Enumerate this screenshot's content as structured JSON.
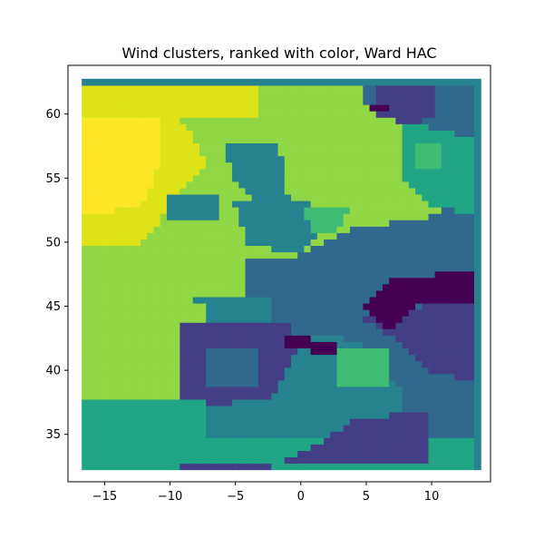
{
  "chart_data": {
    "type": "heatmap",
    "title": "Wind clusters, ranked with color, Ward HAC",
    "xlabel": "",
    "ylabel": "",
    "xlim": [
      -17.8,
      14.5
    ],
    "ylim": [
      31.3,
      63.8
    ],
    "x_ticks": [
      -15,
      -10,
      -5,
      0,
      5,
      10
    ],
    "y_ticks": [
      35,
      40,
      45,
      50,
      55,
      60
    ],
    "x_tick_labels": [
      "−15",
      "−10",
      "−5",
      "0",
      "5",
      "10"
    ],
    "y_tick_labels": [
      "35",
      "40",
      "45",
      "50",
      "55",
      "60"
    ],
    "colormap": "viridis",
    "grid": false,
    "cell_size_deg": 0.5,
    "x_extent": [
      -16.5,
      13.5
    ],
    "y_extent": [
      32.5,
      62.5
    ],
    "cluster_colors": {
      "1": "#440154",
      "2": "#433e85",
      "3": "#31688e",
      "4": "#26828e",
      "5": "#21a585",
      "6": "#3fbc73",
      "7": "#8fd744",
      "8": "#dde318",
      "9": "#fde725"
    },
    "default_cluster": 4,
    "regions": [
      {
        "cluster": 7,
        "polygon": [
          [
            -16.5,
            62.5
          ],
          [
            13.5,
            62.5
          ],
          [
            13.5,
            32.5
          ],
          [
            -16.5,
            32.5
          ]
        ]
      },
      {
        "cluster": 4,
        "polygon": [
          [
            -9,
            46
          ],
          [
            0,
            46
          ],
          [
            3,
            48
          ],
          [
            6,
            50
          ],
          [
            13.5,
            52
          ],
          [
            13.5,
            35
          ],
          [
            -7,
            35
          ],
          [
            -7,
            45
          ]
        ]
      },
      {
        "cluster": 8,
        "polygon": [
          [
            -16.5,
            62.5
          ],
          [
            -3,
            62.5
          ],
          [
            -3,
            60
          ],
          [
            -9,
            59.5
          ],
          [
            -7,
            56
          ],
          [
            -9,
            54
          ],
          [
            -12,
            50
          ],
          [
            -16.5,
            50
          ]
        ]
      },
      {
        "cluster": 9,
        "polygon": [
          [
            -16.5,
            60
          ],
          [
            -11,
            60
          ],
          [
            -10.5,
            57
          ],
          [
            -12,
            53
          ],
          [
            -16.5,
            52
          ]
        ]
      },
      {
        "cluster": 4,
        "polygon": [
          [
            -6,
            58
          ],
          [
            -2,
            58
          ],
          [
            -1,
            56
          ],
          [
            -1,
            54
          ],
          [
            -3,
            53
          ],
          [
            -5,
            55
          ]
        ]
      },
      {
        "cluster": 4,
        "polygon": [
          [
            -10,
            54
          ],
          [
            -6,
            54
          ],
          [
            -6,
            52
          ],
          [
            -10,
            51.5
          ]
        ]
      },
      {
        "cluster": 4,
        "polygon": [
          [
            -5,
            53
          ],
          [
            -2,
            54
          ],
          [
            1,
            53
          ],
          [
            2,
            51
          ],
          [
            0,
            49
          ],
          [
            -4,
            50
          ]
        ]
      },
      {
        "cluster": 6,
        "polygon": [
          [
            0,
            53
          ],
          [
            2,
            52.5
          ],
          [
            4,
            53
          ],
          [
            3,
            51
          ],
          [
            1,
            51
          ]
        ]
      },
      {
        "cluster": 3,
        "polygon": [
          [
            -4,
            49
          ],
          [
            0,
            49
          ],
          [
            4,
            51
          ],
          [
            10,
            52
          ],
          [
            13.5,
            54
          ],
          [
            13.5,
            33
          ],
          [
            8,
            33
          ],
          [
            8,
            38
          ],
          [
            5,
            42
          ],
          [
            2,
            43
          ],
          [
            -2,
            43
          ],
          [
            -2,
            46
          ],
          [
            -4,
            46
          ]
        ]
      },
      {
        "cluster": 5,
        "polygon": [
          [
            8,
            60
          ],
          [
            13.5,
            60
          ],
          [
            13.5,
            52
          ],
          [
            10,
            53
          ],
          [
            8,
            55
          ]
        ]
      },
      {
        "cluster": 6,
        "polygon": [
          [
            9,
            58
          ],
          [
            11,
            58
          ],
          [
            11,
            56
          ],
          [
            9,
            56
          ]
        ]
      },
      {
        "cluster": 3,
        "polygon": [
          [
            5,
            62.5
          ],
          [
            13.5,
            62.5
          ],
          [
            13.5,
            58
          ],
          [
            10,
            59
          ],
          [
            7,
            60
          ],
          [
            5,
            61
          ]
        ]
      },
      {
        "cluster": 2,
        "polygon": [
          [
            6,
            62.5
          ],
          [
            10.5,
            62.5
          ],
          [
            10.5,
            60
          ],
          [
            8.5,
            59
          ],
          [
            6,
            60
          ]
        ]
      },
      {
        "cluster": 1,
        "polygon": [
          [
            5.5,
            61
          ],
          [
            7,
            61
          ],
          [
            7,
            60.5
          ],
          [
            5.5,
            60.5
          ]
        ]
      },
      {
        "cluster": 2,
        "polygon": [
          [
            -9,
            44
          ],
          [
            -1,
            44
          ],
          [
            0,
            42
          ],
          [
            -1,
            40
          ],
          [
            -2,
            38
          ],
          [
            -5,
            37.5
          ],
          [
            -9,
            37.5
          ]
        ]
      },
      {
        "cluster": 3,
        "polygon": [
          [
            -7,
            42
          ],
          [
            -3,
            42
          ],
          [
            -3,
            39
          ],
          [
            -7,
            39
          ]
        ]
      },
      {
        "cluster": 1,
        "polygon": [
          [
            -1,
            43
          ],
          [
            3,
            42
          ],
          [
            3,
            41
          ],
          [
            -1,
            42
          ]
        ]
      },
      {
        "cluster": 6,
        "polygon": [
          [
            3,
            42
          ],
          [
            7,
            42
          ],
          [
            7,
            39
          ],
          [
            3,
            39
          ]
        ]
      },
      {
        "cluster": 2,
        "polygon": [
          [
            5,
            44
          ],
          [
            13.5,
            46
          ],
          [
            13.5,
            39
          ],
          [
            10,
            40
          ],
          [
            8,
            42
          ]
        ]
      },
      {
        "cluster": 1,
        "polygon": [
          [
            5,
            45
          ],
          [
            7,
            47
          ],
          [
            13.5,
            48
          ],
          [
            13.5,
            45.5
          ],
          [
            9,
            45
          ],
          [
            7,
            43
          ]
        ]
      },
      {
        "cluster": 5,
        "polygon": [
          [
            -16.5,
            38
          ],
          [
            -7,
            38
          ],
          [
            -7,
            35
          ],
          [
            -16.5,
            35
          ]
        ]
      },
      {
        "cluster": 5,
        "polygon": [
          [
            -16.5,
            35
          ],
          [
            13.5,
            35
          ],
          [
            13.5,
            32.5
          ],
          [
            -16.5,
            32.5
          ]
        ]
      },
      {
        "cluster": 2,
        "polygon": [
          [
            -9,
            32.5
          ],
          [
            -2,
            32.5
          ],
          [
            1,
            34
          ],
          [
            4,
            36
          ],
          [
            10,
            37
          ],
          [
            10,
            33
          ],
          [
            -9,
            33
          ]
        ]
      }
    ]
  }
}
